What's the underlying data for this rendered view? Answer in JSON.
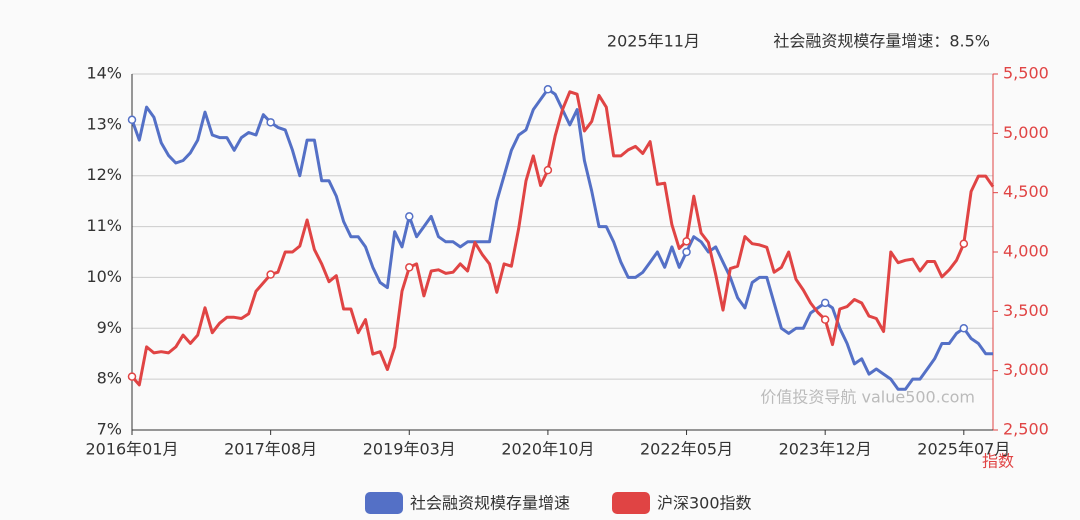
{
  "chart_data": {
    "type": "line",
    "title": "2025年11月",
    "subtitle": "社会融资规模存量增速：8.5%",
    "annotations": [
      "价值投资导航 value500.com"
    ],
    "y2label": "指数",
    "categories": [
      "2016年01月",
      null,
      null,
      null,
      null,
      null,
      null,
      null,
      null,
      null,
      null,
      null,
      null,
      null,
      null,
      null,
      null,
      null,
      null,
      "2017年08月",
      null,
      null,
      null,
      null,
      null,
      null,
      null,
      null,
      null,
      null,
      null,
      null,
      null,
      null,
      null,
      null,
      null,
      null,
      "2019年03月",
      null,
      null,
      null,
      null,
      null,
      null,
      null,
      null,
      null,
      null,
      null,
      null,
      null,
      null,
      null,
      null,
      null,
      null,
      "2020年10月",
      null,
      null,
      null,
      null,
      null,
      null,
      null,
      null,
      null,
      null,
      null,
      null,
      null,
      null,
      null,
      null,
      null,
      null,
      "2022年05月",
      null,
      null,
      null,
      null,
      null,
      null,
      null,
      null,
      null,
      null,
      null,
      null,
      null,
      null,
      null,
      null,
      null,
      null,
      "2023年12月",
      null,
      null,
      null,
      null,
      null,
      null,
      null,
      null,
      null,
      null,
      null,
      null,
      null,
      null,
      null,
      null,
      null,
      null,
      "2025年07月",
      null,
      null,
      null,
      null
    ],
    "series": [
      {
        "name": "社会融资规模存量增速",
        "color": "#5470c6",
        "values": [
          13.1,
          12.7,
          13.35,
          13.15,
          12.65,
          12.4,
          12.25,
          12.3,
          12.45,
          12.7,
          13.25,
          12.8,
          12.75,
          12.75,
          12.5,
          12.75,
          12.85,
          12.8,
          13.2,
          13.05,
          12.95,
          12.9,
          12.5,
          12.0,
          12.7,
          12.7,
          11.9,
          11.9,
          11.6,
          11.1,
          10.8,
          10.8,
          10.6,
          10.2,
          9.9,
          9.8,
          10.9,
          10.6,
          11.2,
          10.8,
          11.0,
          11.2,
          10.8,
          10.7,
          10.7,
          10.6,
          10.7,
          10.7,
          10.7,
          10.7,
          11.5,
          12.0,
          12.5,
          12.8,
          12.9,
          13.3,
          13.5,
          13.7,
          13.6,
          13.3,
          13.0,
          13.3,
          12.3,
          11.7,
          11.0,
          11.0,
          10.7,
          10.3,
          10.0,
          10.0,
          10.1,
          10.3,
          10.5,
          10.2,
          10.6,
          10.2,
          10.5,
          10.8,
          10.7,
          10.5,
          10.6,
          10.3,
          10.0,
          9.6,
          9.4,
          9.9,
          10.0,
          10.0,
          9.5,
          9.0,
          8.9,
          9.0,
          9.0,
          9.3,
          9.4,
          9.5,
          9.4,
          9.0,
          8.7,
          8.3,
          8.4,
          8.1,
          8.2,
          8.1,
          8.0,
          7.8,
          7.8,
          8.0,
          8.0,
          8.2,
          8.4,
          8.7,
          8.7,
          8.9,
          9.0,
          8.8,
          8.7,
          8.5,
          8.5
        ]
      },
      {
        "name": "沪深300指数",
        "color": "#e04444",
        "axis": "y2",
        "values": [
          2950,
          2880,
          3200,
          3150,
          3160,
          3150,
          3200,
          3300,
          3230,
          3300,
          3530,
          3320,
          3400,
          3450,
          3450,
          3440,
          3480,
          3670,
          3740,
          3810,
          3830,
          4000,
          4000,
          4050,
          4270,
          4020,
          3900,
          3750,
          3800,
          3520,
          3520,
          3320,
          3430,
          3140,
          3160,
          3010,
          3200,
          3670,
          3870,
          3900,
          3630,
          3840,
          3850,
          3820,
          3830,
          3900,
          3840,
          4080,
          3980,
          3900,
          3660,
          3900,
          3880,
          4200,
          4600,
          4810,
          4560,
          4690,
          4980,
          5200,
          5350,
          5330,
          5020,
          5100,
          5320,
          5220,
          4810,
          4810,
          4860,
          4890,
          4830,
          4930,
          4570,
          4580,
          4230,
          4030,
          4090,
          4470,
          4160,
          4080,
          3810,
          3510,
          3860,
          3880,
          4130,
          4070,
          4060,
          4040,
          3830,
          3870,
          4000,
          3770,
          3680,
          3570,
          3490,
          3430,
          3220,
          3520,
          3540,
          3600,
          3570,
          3460,
          3440,
          3330,
          4000,
          3910,
          3930,
          3940,
          3840,
          3920,
          3920,
          3790,
          3850,
          3930,
          4070,
          4510,
          4640,
          4640,
          4550
        ]
      }
    ],
    "ylim": [
      7,
      14
    ],
    "yticks": [
      {
        "value": 7,
        "label": "7%"
      },
      {
        "value": 8,
        "label": "8%"
      },
      {
        "value": 9,
        "label": "9%"
      },
      {
        "value": 10,
        "label": "10%"
      },
      {
        "value": 11,
        "label": "11%"
      },
      {
        "value": 12,
        "label": "12%"
      },
      {
        "value": 13,
        "label": "13%"
      },
      {
        "value": 14,
        "label": "14%"
      }
    ],
    "y2lim": [
      2500,
      5500
    ],
    "y2ticks": [
      {
        "value": 2500,
        "label": "2,500"
      },
      {
        "value": 3000,
        "label": "3,000"
      },
      {
        "value": 3500,
        "label": "3,500"
      },
      {
        "value": 4000,
        "label": "4,000"
      },
      {
        "value": 4500,
        "label": "4,500"
      },
      {
        "value": 5000,
        "label": "5,000"
      },
      {
        "value": 5500,
        "label": "5,500"
      }
    ],
    "grid": true
  }
}
